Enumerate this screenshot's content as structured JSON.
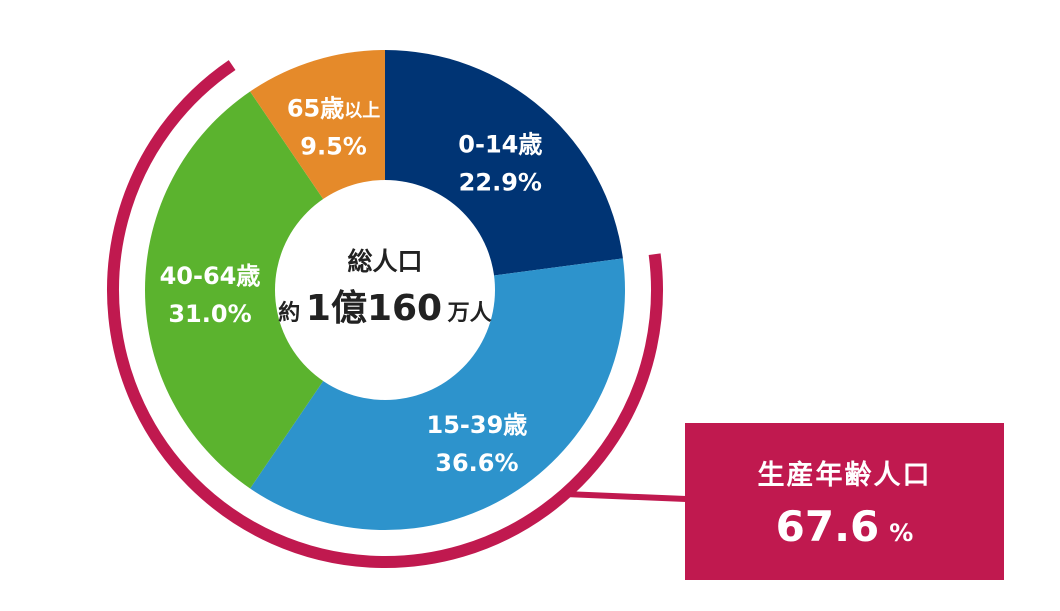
{
  "chart_data": {
    "type": "pie",
    "donut": true,
    "categories": [
      "0-14歳",
      "15-39歳",
      "40-64歳",
      "65歳以上"
    ],
    "values": [
      22.9,
      36.6,
      31.0,
      9.5
    ],
    "value_labels": [
      "22.9%",
      "36.6%",
      "31.0%",
      "9.5%"
    ],
    "label_main": [
      "0-14歳",
      "15-39歳",
      "40-64歳",
      "65歳"
    ],
    "label_suffix": [
      "",
      "",
      "",
      "以上"
    ],
    "colors": [
      "#003474",
      "#2d93cc",
      "#5bb32e",
      "#e58a2a"
    ],
    "center_title": "総人口",
    "center_prefix": "約",
    "center_value": "1億160",
    "center_unit": "万人",
    "highlight": {
      "label": "生産年齢人口",
      "value": "67.6",
      "unit": "%",
      "covers": [
        "15-39歳",
        "40-64歳"
      ],
      "color": "#c0194f"
    }
  }
}
